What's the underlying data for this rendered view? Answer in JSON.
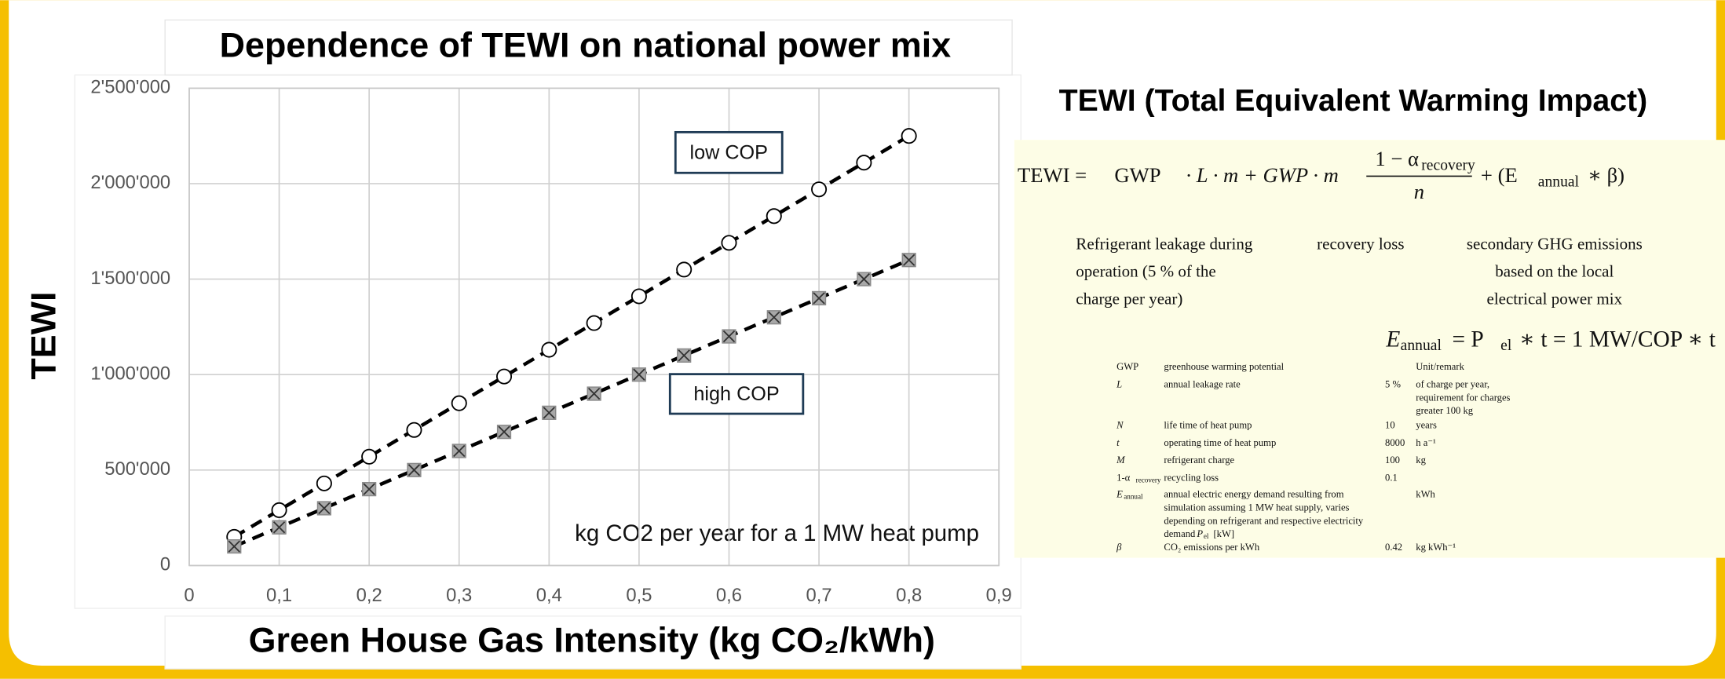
{
  "chart_data": {
    "type": "line",
    "title": "Dependence of TEWI on national power mix",
    "x_label": "Green House Gas Intensity (kg CO₂/kWh)",
    "y_label": "TEWI",
    "annotation": "kg CO2 per year for a 1 MW heat pump",
    "x": [
      0.05,
      0.1,
      0.15,
      0.2,
      0.25,
      0.3,
      0.35,
      0.4,
      0.45,
      0.5,
      0.55,
      0.6,
      0.65,
      0.7,
      0.75,
      0.8
    ],
    "series": [
      {
        "name": "low COP",
        "color": "#000000",
        "marker": "circle",
        "values": [
          150000,
          290000,
          430000,
          570000,
          710000,
          850000,
          990000,
          1130000,
          1270000,
          1410000,
          1550000,
          1690000,
          1830000,
          1970000,
          2110000,
          2250000
        ]
      },
      {
        "name": "high COP",
        "color": "#000000",
        "marker": "square",
        "values": [
          100000,
          200000,
          300000,
          400000,
          500000,
          600000,
          700000,
          800000,
          900000,
          1000000,
          1100000,
          1200000,
          1300000,
          1400000,
          1500000,
          1600000
        ]
      }
    ],
    "xlim": [
      0,
      0.9
    ],
    "xticks": [
      0,
      {
        "value": 0.1,
        "label": "0,1"
      },
      {
        "value": 0.2,
        "label": "0,2"
      },
      {
        "value": 0.3,
        "label": "0,3"
      },
      {
        "value": 0.4,
        "label": "0,4"
      },
      {
        "value": 0.5,
        "label": "0,5"
      },
      {
        "value": 0.6,
        "label": "0,6"
      },
      {
        "value": 0.7,
        "label": "0,7"
      },
      {
        "value": 0.8,
        "label": "0,8"
      },
      {
        "value": 0.9,
        "label": "0,9"
      }
    ],
    "ylim": [
      0,
      2500000
    ],
    "yticks": [
      0,
      {
        "value": 500000,
        "label": "500'000"
      },
      {
        "value": 1000000,
        "label": "1'000'000"
      },
      {
        "value": 1500000,
        "label": "1'500'000"
      },
      {
        "value": 2000000,
        "label": "2'000'000"
      },
      {
        "value": 2500000,
        "label": "2'500'000"
      }
    ],
    "grid": true
  },
  "panel": {
    "title": "TEWI (Total Equivalent Warming Impact)",
    "formula": {
      "lhs": "TEWI =",
      "gwp": "GWP",
      "mid": "· L · m + GWP · m",
      "num": "1 − α",
      "num_sub": "recovery",
      "den": "n",
      "tail_a": "+ (E",
      "tail_sub": "annual",
      "tail_b": "∗ β)"
    },
    "notes": [
      [
        "Refrigerant leakage during",
        "operation (5 % of the",
        "charge per year)"
      ],
      [
        "recovery loss"
      ],
      [
        "secondary GHG emissions",
        "based on the local",
        "electrical power mix"
      ]
    ],
    "formula2": {
      "a": "E",
      "a_sub": "annual",
      "b": "= P",
      "b_sub": "el",
      "c": "∗ t = 1 MW/COP ∗ t"
    },
    "table": [
      {
        "sym": "GWP",
        "desc": [
          "greenhouse warming potential"
        ],
        "unit": [
          "Unit/remark"
        ]
      },
      {
        "sym": "L",
        "desc": [
          "annual leakage rate"
        ],
        "value": "5 %",
        "unit": [
          "of charge per year,",
          "requirement for charges",
          "greater 100 kg"
        ]
      },
      {
        "sym": "N",
        "desc": [
          "life time of heat pump"
        ],
        "value": "10",
        "unit": [
          "years"
        ]
      },
      {
        "sym": "t",
        "desc": [
          "operating time of heat pump"
        ],
        "value": "8000",
        "unit": [
          "h a⁻¹"
        ]
      },
      {
        "sym": "M",
        "desc": [
          "refrigerant charge"
        ],
        "value": "100",
        "unit": [
          "kg"
        ]
      },
      {
        "sym": "1-α",
        "sub": "recovery",
        "desc": [
          "recycling loss"
        ],
        "value": "0.1"
      },
      {
        "sym": "E",
        "sub": "annual",
        "desc": [
          "annual electric energy demand resulting from",
          "simulation assuming 1 MW heat supply, varies",
          "depending on refrigerant and respective electricity"
        ],
        "desc_tail": {
          "text": "demand",
          "sym": "P",
          "sub": "el",
          "after": "[kW]"
        },
        "unit": [
          "kWh"
        ]
      },
      {
        "sym": "β",
        "desc": [
          "CO₂ emissions per kWh"
        ],
        "value": "0.42",
        "unit": [
          "kg kWh⁻¹"
        ]
      }
    ]
  }
}
